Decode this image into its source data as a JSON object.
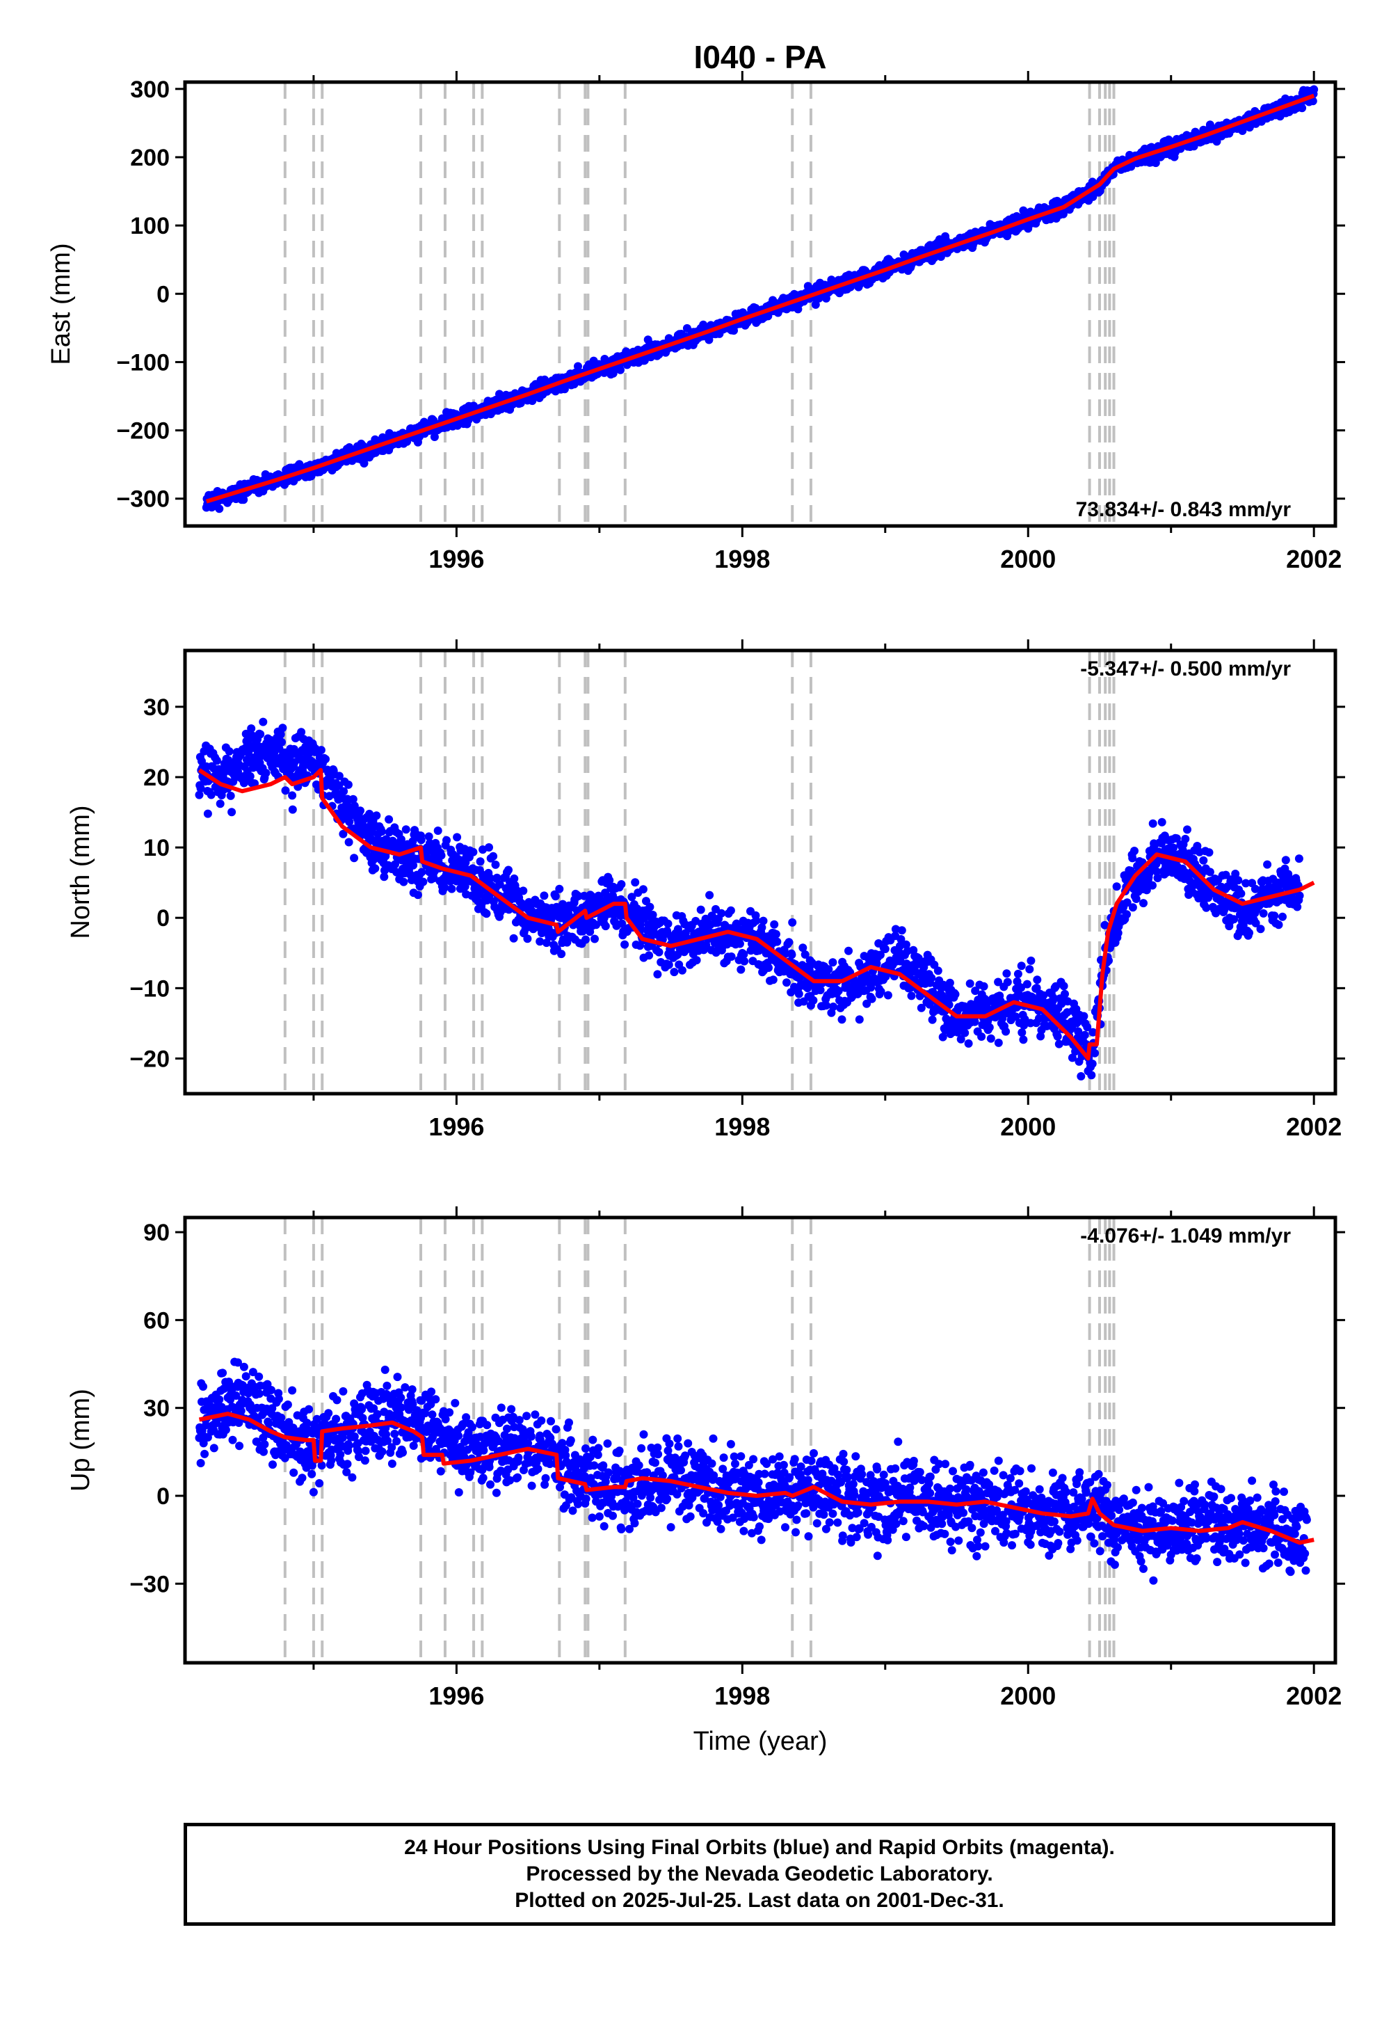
{
  "title": "I040 - PA",
  "xlabel": "Time (year)",
  "footer": [
    "24 Hour Positions Using Final Orbits (blue) and Rapid Orbits (magenta).",
    "Processed by the Nevada Geodetic Laboratory.",
    "Plotted on 2025-Jul-25. Last data on 2001-Dec-31."
  ],
  "colors": {
    "final": "#0000ff",
    "rapid": "#ff00ff",
    "model": "#ff0000",
    "event": "#c0c0c0"
  },
  "chart_data": [
    {
      "type": "scatter",
      "ylabel": "East (mm)",
      "rate": "73.834+/- 0.843 mm/yr",
      "rate_position": "bottom-right",
      "xlim": [
        1994.1,
        2002.15
      ],
      "ylim": [
        -340,
        310
      ],
      "yticks": [
        300,
        200,
        100,
        0,
        -100,
        -200,
        -300
      ],
      "xticks": [
        1996,
        1998,
        2000,
        2002
      ],
      "series": [
        {
          "role": "observations",
          "x": [
            1994.25,
            1994.5,
            1994.75,
            1995.0,
            1995.25,
            1995.5,
            1995.75,
            1996.0,
            1996.25,
            1996.5,
            1996.75,
            1997.0,
            1997.25,
            1997.5,
            1997.75,
            1998.0,
            1998.25,
            1998.5,
            1998.75,
            1999.0,
            1999.25,
            1999.5,
            1999.75,
            2000.0,
            2000.25,
            2000.5,
            2000.6,
            2000.75,
            2001.0,
            2001.25,
            2001.5,
            2001.75,
            2002.0
          ],
          "y": [
            -305,
            -289,
            -272,
            -256,
            -238,
            -220,
            -201,
            -184,
            -166,
            -147,
            -128,
            -110,
            -92,
            -73,
            -56,
            -38,
            -19,
            0,
            18,
            35,
            55,
            72,
            91,
            110,
            128,
            160,
            182,
            197,
            214,
            232,
            251,
            270,
            290
          ]
        },
        {
          "role": "model",
          "x": [
            1994.25,
            1994.5,
            1994.75,
            1995.0,
            1995.25,
            1995.5,
            1995.75,
            1996.0,
            1996.25,
            1996.5,
            1996.75,
            1997.0,
            1997.25,
            1997.5,
            1997.75,
            1998.0,
            1998.25,
            1998.5,
            1998.75,
            1999.0,
            1999.25,
            1999.5,
            1999.75,
            2000.0,
            2000.25,
            2000.5,
            2000.6,
            2000.75,
            2001.0,
            2001.25,
            2001.5,
            2001.75,
            2002.0
          ],
          "y": [
            -304,
            -288,
            -272,
            -255,
            -237,
            -219,
            -201,
            -183,
            -165,
            -147,
            -128,
            -110,
            -92,
            -74,
            -56,
            -37,
            -19,
            -1,
            17,
            35,
            54,
            72,
            90,
            109,
            127,
            160,
            183,
            198,
            215,
            233,
            252,
            271,
            290
          ]
        }
      ]
    },
    {
      "type": "scatter",
      "ylabel": "North (mm)",
      "rate": "-5.347+/- 0.500 mm/yr",
      "rate_position": "top-right",
      "xlim": [
        1994.1,
        2002.15
      ],
      "ylim": [
        -25,
        38
      ],
      "yticks": [
        30,
        20,
        10,
        0,
        -10,
        -20
      ],
      "xticks": [
        1996,
        1998,
        2000,
        2002
      ],
      "series": [
        {
          "role": "observations",
          "x": [
            1994.2,
            1994.35,
            1994.5,
            1994.7,
            1994.85,
            1995.0,
            1995.15,
            1995.3,
            1995.5,
            1995.7,
            1995.9,
            1996.1,
            1996.3,
            1996.5,
            1996.7,
            1996.9,
            1997.1,
            1997.3,
            1997.5,
            1997.7,
            1997.9,
            1998.1,
            1998.3,
            1998.5,
            1998.7,
            1998.9,
            1999.1,
            1999.3,
            1999.5,
            1999.7,
            1999.9,
            2000.1,
            2000.3,
            2000.45,
            2000.55,
            2000.7,
            2000.9,
            2001.1,
            2001.3,
            2001.5,
            2001.7,
            2001.9
          ],
          "y": [
            21,
            20,
            22,
            24,
            21,
            23,
            18,
            13,
            10,
            9,
            8,
            6,
            4,
            1,
            -1,
            0,
            2,
            -1,
            -4,
            -3,
            -2,
            -3,
            -6,
            -9,
            -10,
            -8,
            -6,
            -10,
            -14,
            -14,
            -12,
            -12,
            -16,
            -19,
            -4,
            4,
            9,
            8,
            4,
            1,
            3,
            5
          ]
        },
        {
          "role": "model",
          "x": [
            1994.2,
            1994.35,
            1994.5,
            1994.7,
            1994.8,
            1994.85,
            1995.0,
            1995.05,
            1995.06,
            1995.2,
            1995.4,
            1995.6,
            1995.75,
            1995.76,
            1995.9,
            1996.1,
            1996.3,
            1996.5,
            1996.7,
            1996.71,
            1996.9,
            1996.91,
            1997.1,
            1997.18,
            1997.19,
            1997.3,
            1997.5,
            1997.7,
            1997.9,
            1998.1,
            1998.3,
            1998.5,
            1998.7,
            1998.9,
            1999.1,
            1999.3,
            1999.5,
            1999.7,
            1999.9,
            2000.1,
            2000.3,
            2000.42,
            2000.43,
            2000.48,
            2000.52,
            2000.56,
            2000.62,
            2000.75,
            2000.9,
            2001.1,
            2001.3,
            2001.5,
            2001.7,
            2001.9,
            2002.0
          ],
          "y": [
            21,
            19,
            18,
            19,
            20,
            19,
            20,
            21,
            17,
            13,
            10,
            9,
            10,
            8,
            7,
            6,
            3,
            0,
            -1,
            -2,
            1,
            0,
            2,
            2,
            0,
            -3,
            -4,
            -3,
            -2,
            -3,
            -6,
            -9,
            -9,
            -7,
            -8,
            -11,
            -14,
            -14,
            -12,
            -13,
            -17,
            -20,
            -18,
            -18,
            -8,
            -2,
            2,
            6,
            9,
            8,
            4,
            2,
            3,
            4,
            5
          ]
        }
      ]
    },
    {
      "type": "scatter",
      "ylabel": "Up (mm)",
      "rate": "-4.076+/- 1.049 mm/yr",
      "rate_position": "top-right",
      "xlim": [
        1994.1,
        2002.15
      ],
      "ylim": [
        -57,
        95
      ],
      "yticks": [
        90,
        60,
        30,
        0,
        -30
      ],
      "xticks": [
        1996,
        1998,
        2000,
        2002
      ],
      "series": [
        {
          "role": "observations",
          "x": [
            1994.2,
            1994.35,
            1994.5,
            1994.65,
            1994.8,
            1995.0,
            1995.2,
            1995.4,
            1995.6,
            1995.8,
            1996.0,
            1996.2,
            1996.4,
            1996.6,
            1996.8,
            1997.0,
            1997.2,
            1997.4,
            1997.6,
            1997.8,
            1998.0,
            1998.2,
            1998.4,
            1998.6,
            1998.8,
            1999.0,
            1999.2,
            1999.4,
            1999.6,
            1999.8,
            2000.0,
            2000.2,
            2000.4,
            2000.6,
            2000.8,
            2001.0,
            2001.2,
            2001.4,
            2001.6,
            2001.8,
            2001.95
          ],
          "y": [
            24,
            30,
            32,
            28,
            20,
            18,
            22,
            26,
            28,
            22,
            16,
            14,
            16,
            18,
            8,
            4,
            2,
            4,
            6,
            3,
            0,
            0,
            2,
            3,
            -2,
            -2,
            0,
            -2,
            -4,
            -3,
            -5,
            -6,
            -4,
            -10,
            -12,
            -12,
            -10,
            -12,
            -10,
            -14,
            -16
          ]
        },
        {
          "role": "model",
          "x": [
            1994.2,
            1994.4,
            1994.55,
            1994.7,
            1994.8,
            1994.95,
            1995.0,
            1995.01,
            1995.05,
            1995.06,
            1995.2,
            1995.4,
            1995.55,
            1995.7,
            1995.76,
            1995.77,
            1995.9,
            1995.91,
            1996.1,
            1996.3,
            1996.5,
            1996.7,
            1996.71,
            1996.9,
            1996.91,
            1997.1,
            1997.18,
            1997.19,
            1997.3,
            1997.5,
            1997.7,
            1997.9,
            1998.1,
            1998.3,
            1998.35,
            1998.5,
            1998.7,
            1998.9,
            1999.1,
            1999.3,
            1999.5,
            1999.7,
            1999.9,
            2000.1,
            2000.3,
            2000.42,
            2000.45,
            2000.5,
            2000.6,
            2000.8,
            2001.0,
            2001.2,
            2001.4,
            2001.5,
            2001.7,
            2001.9,
            2002.0
          ],
          "y": [
            26,
            28,
            26,
            22,
            20,
            19,
            19,
            12,
            12,
            22,
            23,
            24,
            25,
            22,
            20,
            14,
            14,
            11,
            12,
            14,
            16,
            14,
            6,
            4,
            2,
            3,
            3,
            5,
            6,
            5,
            3,
            1,
            0,
            1,
            0,
            3,
            -2,
            -3,
            -2,
            -2,
            -3,
            -2,
            -4,
            -6,
            -7,
            -6,
            -1,
            -6,
            -10,
            -12,
            -11,
            -12,
            -11,
            -9,
            -12,
            -16,
            -15
          ]
        }
      ]
    }
  ],
  "events": [
    1994.8,
    1995.0,
    1995.06,
    1995.75,
    1995.92,
    1996.12,
    1996.18,
    1996.72,
    1996.9,
    1996.92,
    1997.18,
    1998.35,
    1998.48,
    2000.43,
    2000.5,
    2000.54,
    2000.57,
    2000.6
  ]
}
